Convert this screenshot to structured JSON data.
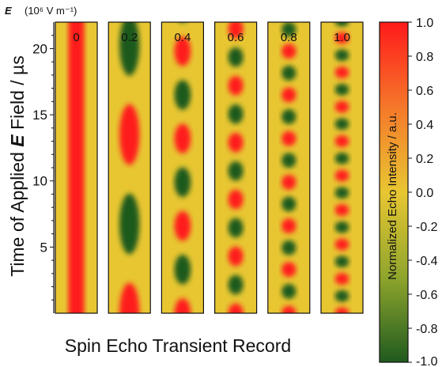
{
  "chart_data": {
    "type": "heatmap",
    "field_unit_label": "E",
    "field_unit": "(10⁶ V m⁻¹)",
    "panels": [
      {
        "field": "0",
        "period_us": null,
        "amplitude": 1.0
      },
      {
        "field": "0.2",
        "period_us": 13.5,
        "amplitude": 1.0
      },
      {
        "field": "0.4",
        "period_us": 6.6,
        "amplitude": 1.0
      },
      {
        "field": "0.6",
        "period_us": 4.3,
        "amplitude": 1.0
      },
      {
        "field": "0.8",
        "period_us": 3.3,
        "amplitude": 1.0
      },
      {
        "field": "1.0",
        "period_us": 2.6,
        "amplitude": 1.0
      }
    ],
    "ylabel": "Time of Applied E Field / µs",
    "ylabel_parts": [
      "Time of Applied ",
      "E",
      " Field / µs"
    ],
    "xlabel": "Spin Echo Transient Record",
    "ylim": [
      0,
      22
    ],
    "yticks": [
      "5",
      "10",
      "15",
      "20"
    ],
    "colorbar": {
      "label": "Normalized Echo Intensity / a.u.",
      "range": [
        -1.0,
        1.0
      ],
      "ticks": [
        "1.0",
        "0.8",
        "0.6",
        "0.4",
        "0.2",
        "0.0",
        "-0.2",
        "-0.4",
        "-0.6",
        "-0.8",
        "-1.0"
      ],
      "colors": {
        "high": "#ff1a1a",
        "mid": "#e8c632",
        "low": "#1f5a1f"
      }
    }
  }
}
